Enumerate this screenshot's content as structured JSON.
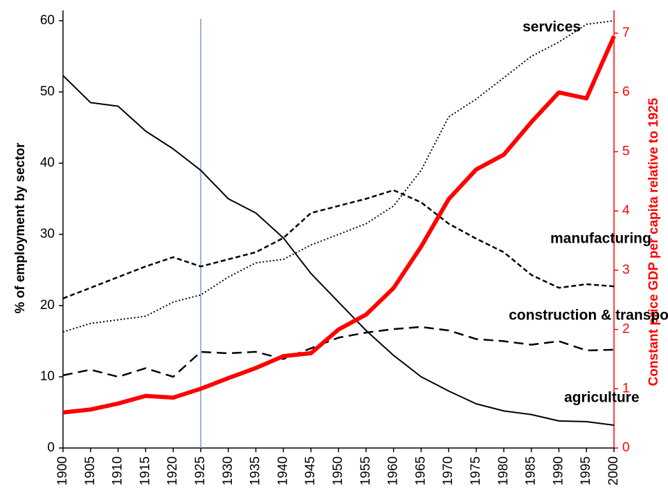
{
  "chart_data": {
    "type": "line",
    "x": [
      1900,
      1905,
      1910,
      1915,
      1920,
      1925,
      1930,
      1935,
      1940,
      1945,
      1950,
      1955,
      1960,
      1965,
      1970,
      1975,
      1980,
      1985,
      1990,
      1995,
      2000
    ],
    "xlim": [
      1900,
      2000
    ],
    "xticks": [
      1900,
      1905,
      1910,
      1915,
      1920,
      1925,
      1930,
      1935,
      1940,
      1945,
      1950,
      1955,
      1960,
      1965,
      1970,
      1975,
      1980,
      1985,
      1990,
      1995,
      2000
    ],
    "ylim": [
      0,
      60
    ],
    "yticks": [
      0,
      10,
      20,
      30,
      40,
      50,
      60
    ],
    "y2lim": [
      0,
      7
    ],
    "y2ticks": [
      0,
      1,
      2,
      3,
      4,
      5,
      6,
      7
    ],
    "ylabel": "% of employment by sector",
    "y2label": "Constant price GDP per capita relative to 1925",
    "reference_line": 1925,
    "series": [
      {
        "name": "services",
        "color": "#000000",
        "style": "dotted",
        "values": [
          16.3,
          17.5,
          18,
          18.5,
          20.5,
          21.5,
          24,
          26,
          26.5,
          28.5,
          30,
          31.5,
          34,
          39,
          46.5,
          49,
          52,
          55,
          57,
          59.5,
          60
        ]
      },
      {
        "name": "manufacturing",
        "color": "#000000",
        "style": "dashed",
        "values": [
          21,
          22.5,
          24,
          25.5,
          26.8,
          25.5,
          26.5,
          27.5,
          29.5,
          33,
          34,
          35,
          36.2,
          34.5,
          31.5,
          29.4,
          27.5,
          24.3,
          22.5,
          23,
          22.7
        ]
      },
      {
        "name": "construction & transport",
        "color": "#000000",
        "style": "longdash",
        "values": [
          10.2,
          11,
          10,
          11.2,
          10,
          13.5,
          13.3,
          13.5,
          12.5,
          14,
          15.5,
          16.2,
          16.7,
          17,
          16.5,
          15.3,
          15,
          14.5,
          15,
          13.7,
          13.8
        ]
      },
      {
        "name": "agriculture",
        "color": "#000000",
        "style": "solid",
        "values": [
          52.3,
          48.5,
          48,
          44.5,
          42,
          39,
          35,
          33,
          29.5,
          24.5,
          20.5,
          16.5,
          13,
          10,
          8,
          6.2,
          5.2,
          4.7,
          3.8,
          3.7,
          3.2
        ]
      },
      {
        "name": "GDP per capita",
        "color": "#ff0000",
        "style": "thick",
        "axis": "y2",
        "values": [
          0.6,
          0.65,
          0.75,
          0.88,
          0.85,
          1.0,
          1.18,
          1.35,
          1.55,
          1.6,
          2.0,
          2.25,
          2.7,
          3.4,
          4.2,
          4.7,
          4.95,
          5.5,
          6.0,
          5.9,
          6.95
        ]
      }
    ]
  }
}
